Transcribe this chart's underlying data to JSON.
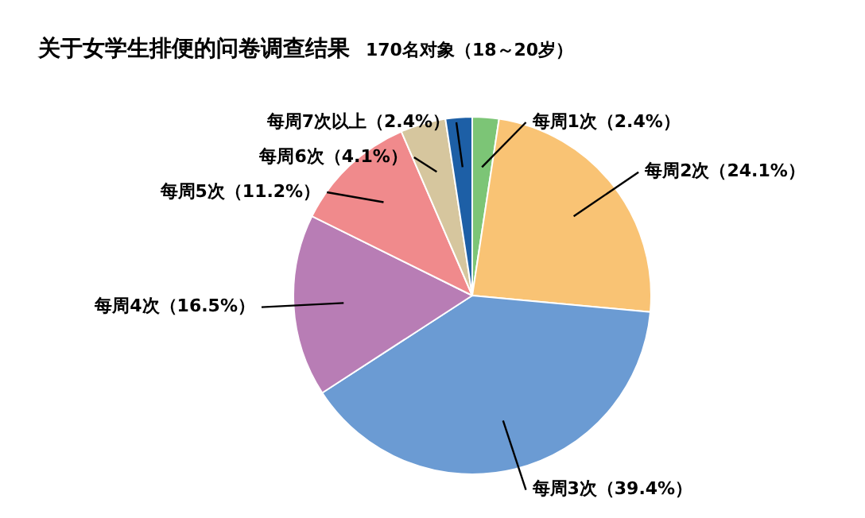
{
  "chart_data": {
    "type": "pie",
    "title": "关于女学生排便的问卷调查结果",
    "subtitle": "170名对象（18～20岁）",
    "categories": [
      "每周1次",
      "每周2次",
      "每周3次",
      "每周4次",
      "每周5次",
      "每周6次",
      "每周7次以上"
    ],
    "values": [
      2.4,
      24.1,
      39.4,
      16.5,
      11.2,
      4.1,
      2.4
    ],
    "colors": [
      "#7cc576",
      "#f9c374",
      "#6b9bd3",
      "#b87db5",
      "#f08a8c",
      "#d6c69e",
      "#1d5fa6"
    ],
    "value_labels": [
      "（2.4%）",
      "（24.1%）",
      "（39.4%）",
      "（16.5%）",
      "（11.2%）",
      "（4.1%）",
      "（2.4%）"
    ],
    "legend": false
  }
}
